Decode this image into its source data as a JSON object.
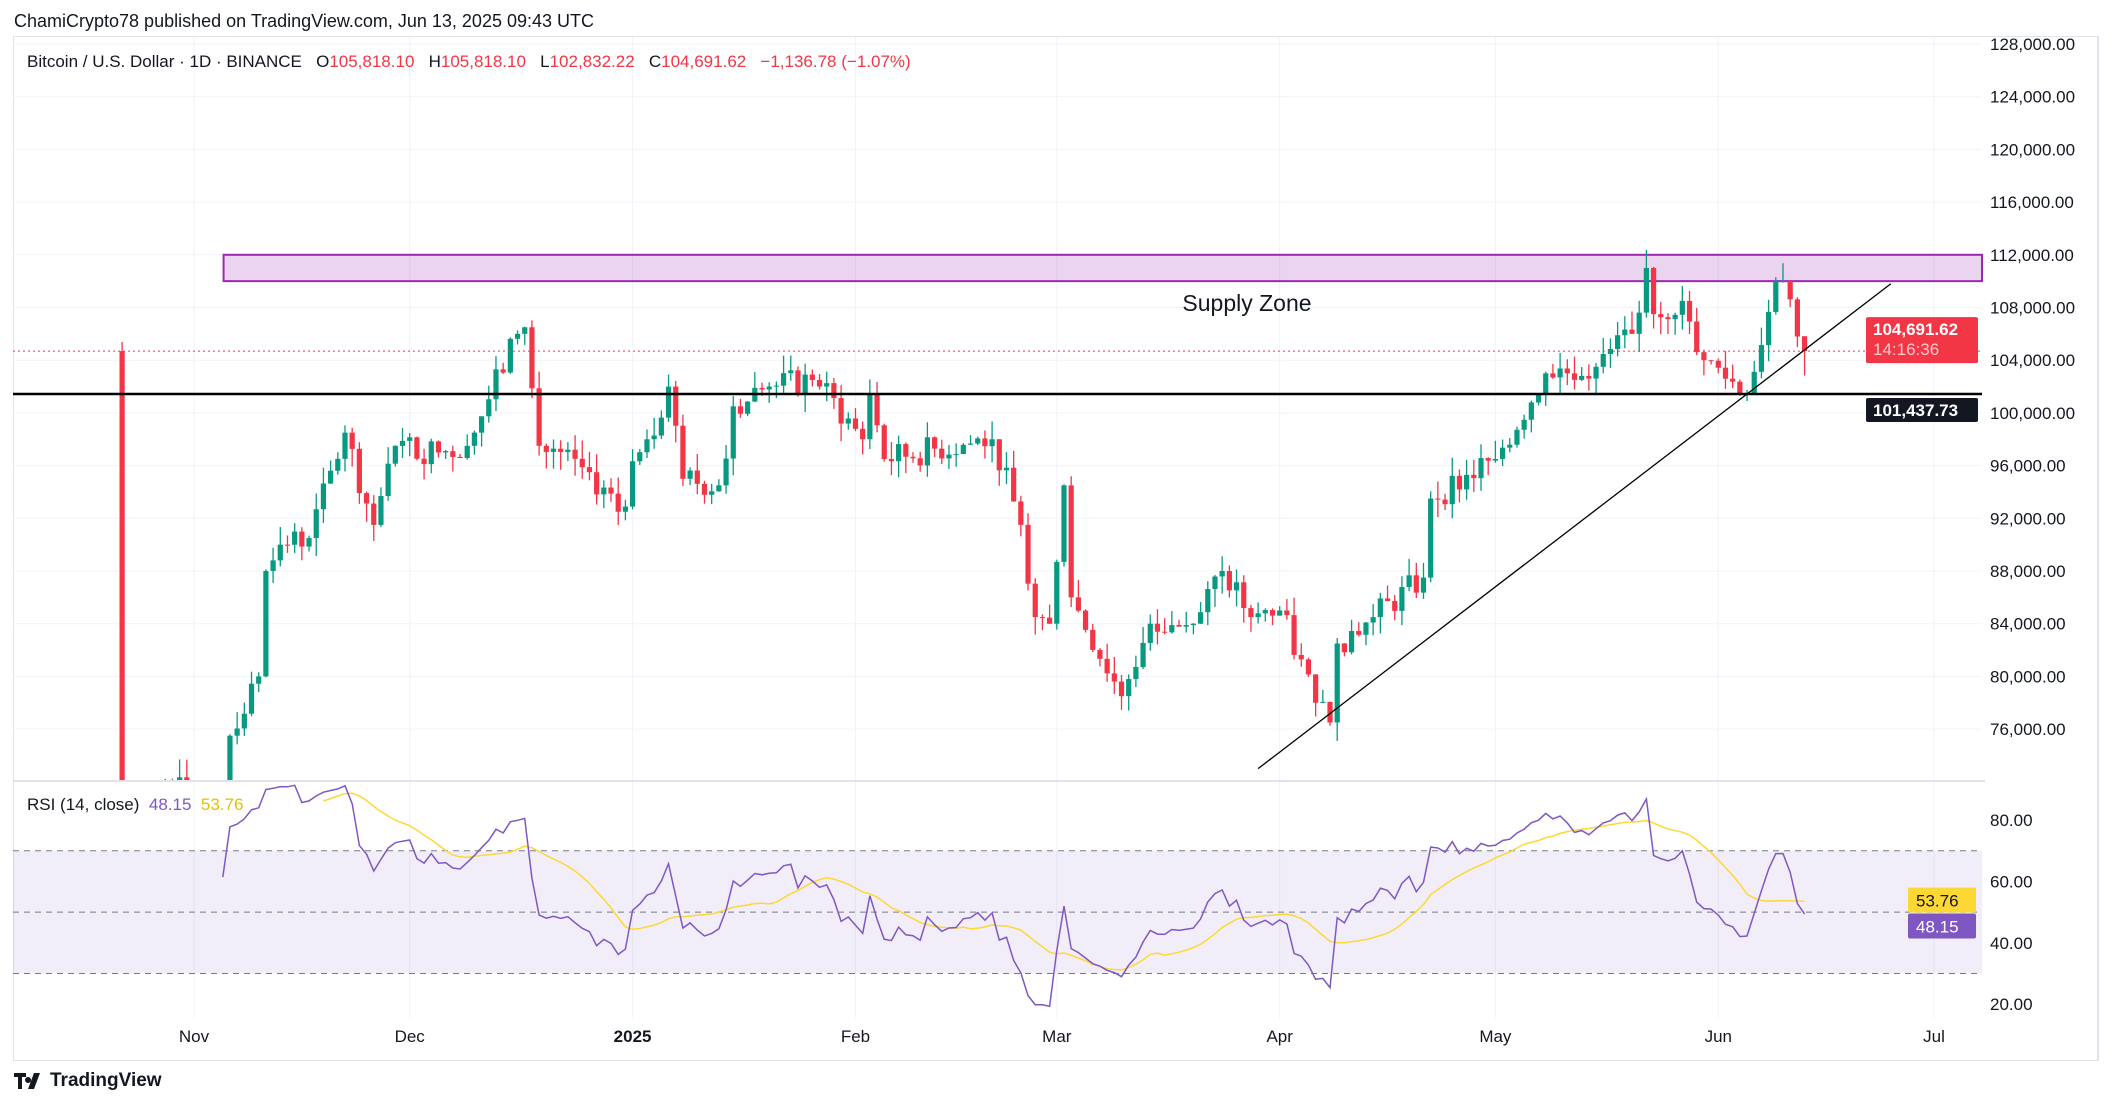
{
  "header": {
    "published": "ChamiCrypto78 published on TradingView.com, Jun 13, 2025 09:43 UTC"
  },
  "legend": {
    "symbol": "Bitcoin / U.S. Dollar · 1D · BINANCE",
    "o_label": "O",
    "o": "105,818.10",
    "h_label": "H",
    "h": "105,818.10",
    "l_label": "L",
    "l": "102,832.22",
    "c_label": "C",
    "c": "104,691.62",
    "change": "−1,136.78 (−1.07%)"
  },
  "rsi_legend": {
    "label": "RSI (14, close)",
    "rsi": "48.15",
    "ma": "53.76"
  },
  "footer": {
    "brand": "TradingView"
  },
  "colors": {
    "up": "#089981",
    "down": "#f23645",
    "rsi": "#7e57c2",
    "rsi_ma": "#fdd835",
    "zone": "#9c27b0"
  },
  "chart_data": {
    "type": "candlestick",
    "symbol": "BTCUSD",
    "interval": "1D",
    "price_axis": [
      "128,000.00",
      "124,000.00",
      "120,000.00",
      "116,000.00",
      "112,000.00",
      "108,000.00",
      "104,000.00",
      "100,000.00",
      "96,000.00",
      "92,000.00",
      "88,000.00",
      "84,000.00",
      "80,000.00",
      "76,000.00"
    ],
    "price_range": [
      72500,
      129500
    ],
    "time_axis": [
      {
        "label": "Nov",
        "day": 0
      },
      {
        "label": "Dec",
        "day": 30
      },
      {
        "label": "2025",
        "day": 61
      },
      {
        "label": "Feb",
        "day": 92
      },
      {
        "label": "Mar",
        "day": 120
      },
      {
        "label": "Apr",
        "day": 151
      },
      {
        "label": "May",
        "day": 181
      },
      {
        "label": "Jun",
        "day": 212
      },
      {
        "label": "Jul",
        "day": 242
      }
    ],
    "close_anchors_day_offset_from_nov1": [
      [
        -10,
        67500
      ],
      [
        -4,
        72000
      ],
      [
        4,
        69500
      ],
      [
        5,
        75500
      ],
      [
        9,
        80000
      ],
      [
        10,
        88000
      ],
      [
        12,
        90000
      ],
      [
        16,
        90500
      ],
      [
        21,
        98500
      ],
      [
        25,
        91500
      ],
      [
        28,
        97500
      ],
      [
        34,
        97000
      ],
      [
        38,
        97500
      ],
      [
        45,
        106000
      ],
      [
        46,
        106500
      ],
      [
        48,
        97500
      ],
      [
        55,
        95500
      ],
      [
        59,
        92500
      ],
      [
        63,
        98000
      ],
      [
        66,
        102000
      ],
      [
        68,
        95000
      ],
      [
        73,
        94500
      ],
      [
        75,
        100500
      ],
      [
        80,
        102000
      ],
      [
        86,
        102500
      ],
      [
        87,
        102000
      ],
      [
        93,
        98000
      ],
      [
        94,
        101500
      ],
      [
        96,
        96500
      ],
      [
        111,
        98000
      ],
      [
        115,
        91500
      ],
      [
        117,
        84500
      ],
      [
        119,
        84000
      ],
      [
        121,
        94500
      ],
      [
        122,
        86000
      ],
      [
        129,
        78500
      ],
      [
        133,
        84000
      ],
      [
        139,
        84000
      ],
      [
        143,
        88000
      ],
      [
        147,
        84500
      ],
      [
        151,
        85000
      ],
      [
        156,
        78000
      ],
      [
        158,
        76500
      ],
      [
        159,
        82500
      ],
      [
        164,
        84500
      ],
      [
        171,
        87500
      ],
      [
        172,
        93500
      ],
      [
        181,
        96500
      ],
      [
        188,
        103000
      ],
      [
        195,
        103500
      ],
      [
        200,
        106000
      ],
      [
        202,
        111000
      ],
      [
        203,
        107500
      ],
      [
        207,
        108500
      ],
      [
        210,
        104000
      ],
      [
        216,
        101500
      ],
      [
        220,
        110000
      ],
      [
        221,
        110000
      ],
      [
        223,
        105800
      ],
      [
        224,
        104691.62
      ]
    ],
    "last": {
      "open": 105818.1,
      "high": 105818.1,
      "low": 102832.22,
      "close": 104691.62,
      "countdown": "14:16:36"
    },
    "current_price_label": "104,691.62",
    "horizontal_level": {
      "value": 101437.73,
      "label": "101,437.73"
    },
    "supply_zone": {
      "label": "Supply Zone",
      "low": 110000,
      "high": 112000,
      "start_day": 3
    },
    "trendline": {
      "from": {
        "day": 148,
        "price": 73000
      },
      "to": {
        "day": 236,
        "price": 109800
      }
    },
    "rsi": {
      "period": 14,
      "ma_period": 14,
      "axis": [
        "80.00",
        "60.00",
        "40.00",
        "20.00"
      ],
      "upper": 70,
      "lower": 30,
      "mid": 50,
      "last_rsi": "48.15",
      "last_ma": "53.76"
    }
  }
}
